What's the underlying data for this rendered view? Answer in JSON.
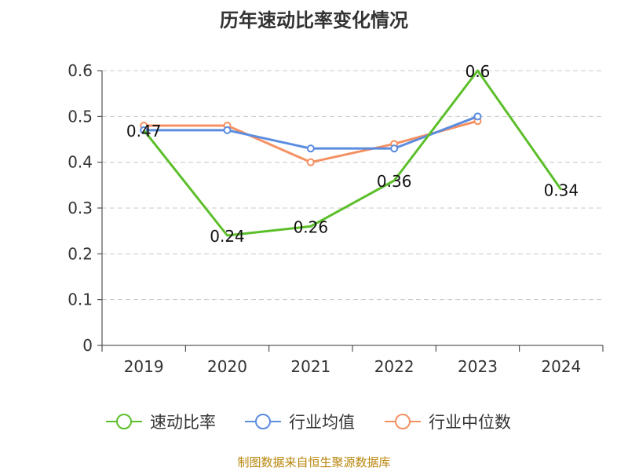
{
  "chart_data": {
    "type": "line",
    "title": "历年速动比率变化情况",
    "categories": [
      "2019",
      "2020",
      "2021",
      "2022",
      "2023",
      "2024"
    ],
    "ylim": [
      0,
      0.6
    ],
    "yticks": [
      "0",
      "0.1",
      "0.2",
      "0.3",
      "0.4",
      "0.5",
      "0.6"
    ],
    "grid": true,
    "legend_position": "bottom",
    "series": [
      {
        "name": "速动比率",
        "color": "#5cbf2a",
        "values": [
          0.47,
          0.24,
          0.26,
          0.36,
          0.6,
          0.34
        ],
        "labels": [
          "0.47",
          "0.24",
          "0.26",
          "0.36",
          "0.6",
          "0.34"
        ]
      },
      {
        "name": "行业均值",
        "color": "#5b8ce0",
        "values": [
          0.47,
          0.47,
          0.43,
          0.43,
          0.5,
          null
        ]
      },
      {
        "name": "行业中位数",
        "color": "#f59062",
        "values": [
          0.48,
          0.48,
          0.4,
          0.44,
          0.49,
          null
        ]
      }
    ]
  },
  "source": "制图数据来自恒生聚源数据库"
}
